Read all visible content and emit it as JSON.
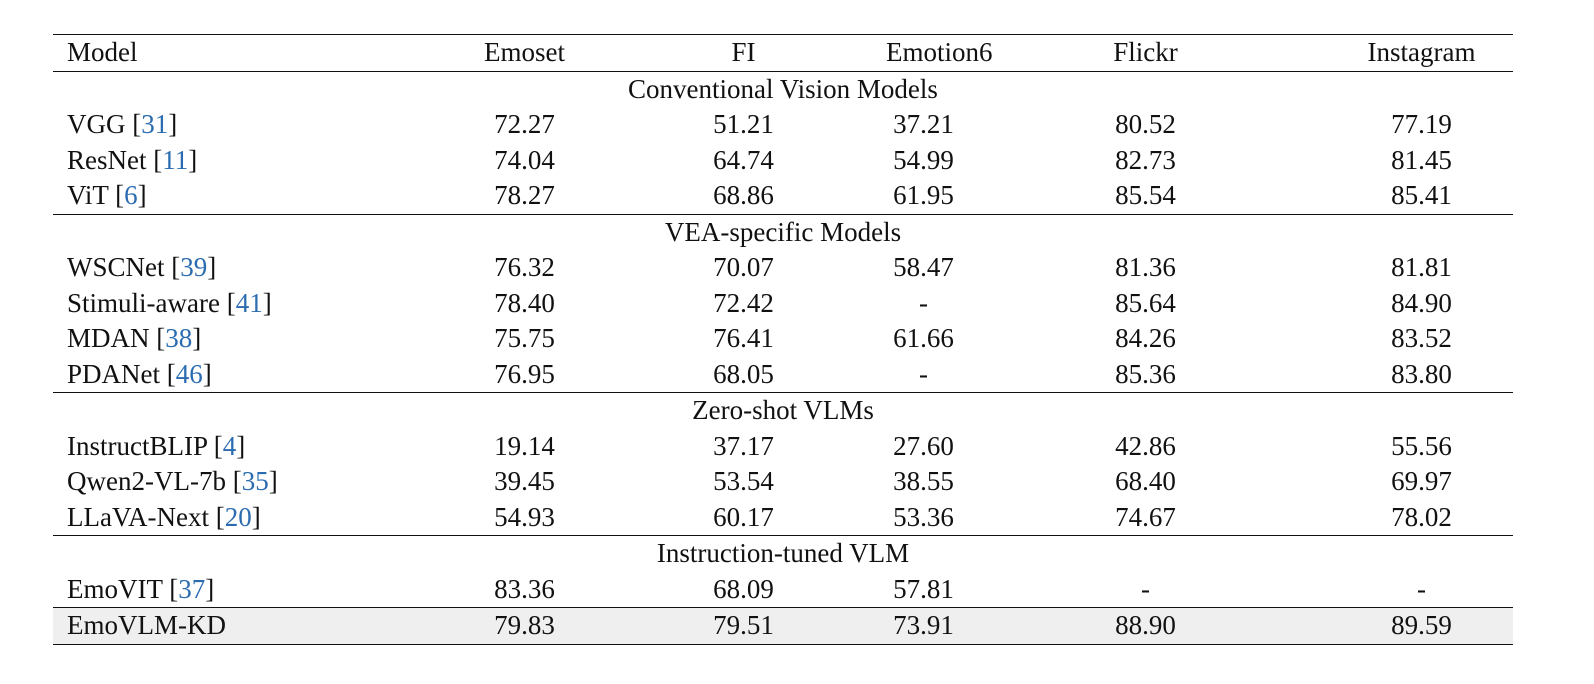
{
  "table": {
    "columns": [
      "Model",
      "Emoset",
      "FI",
      "Emotion6",
      "Flickr",
      "Instagram"
    ],
    "sections": [
      {
        "title": "Conventional Vision Models",
        "rows": [
          {
            "model": "VGG",
            "cite": "31",
            "values": [
              "72.27",
              "51.21",
              "37.21",
              "80.52",
              "77.19"
            ]
          },
          {
            "model": "ResNet",
            "cite": "11",
            "values": [
              "74.04",
              "64.74",
              "54.99",
              "82.73",
              "81.45"
            ]
          },
          {
            "model": "ViT",
            "cite": "6",
            "values": [
              "78.27",
              "68.86",
              "61.95",
              "85.54",
              "85.41"
            ]
          }
        ]
      },
      {
        "title": "VEA-specific Models",
        "rows": [
          {
            "model": "WSCNet",
            "cite": "39",
            "values": [
              "76.32",
              "70.07",
              "58.47",
              "81.36",
              "81.81"
            ]
          },
          {
            "model": "Stimuli-aware",
            "cite": "41",
            "values": [
              "78.40",
              "72.42",
              "-",
              "85.64",
              "84.90"
            ]
          },
          {
            "model": "MDAN",
            "cite": "38",
            "values": [
              "75.75",
              "76.41",
              "61.66",
              "84.26",
              "83.52"
            ]
          },
          {
            "model": "PDANet",
            "cite": "46",
            "values": [
              "76.95",
              "68.05",
              "-",
              "85.36",
              "83.80"
            ]
          }
        ]
      },
      {
        "title": "Zero-shot VLMs",
        "rows": [
          {
            "model": "InstructBLIP",
            "cite": "4",
            "values": [
              "19.14",
              "37.17",
              "27.60",
              "42.86",
              "55.56"
            ]
          },
          {
            "model": "Qwen2-VL-7b",
            "cite": "35",
            "values": [
              "39.45",
              "53.54",
              "38.55",
              "68.40",
              "69.97"
            ]
          },
          {
            "model": "LLaVA-Next",
            "cite": "20",
            "values": [
              "54.93",
              "60.17",
              "53.36",
              "74.67",
              "78.02"
            ]
          }
        ]
      },
      {
        "title": "Instruction-tuned VLM",
        "rows": [
          {
            "model": "EmoVIT",
            "cite": "37",
            "values": [
              "83.36",
              "68.09",
              "57.81",
              "-",
              "-"
            ]
          }
        ]
      }
    ],
    "final_row": {
      "model": "EmoVLM-KD",
      "values": [
        "79.83",
        "79.51",
        "73.91",
        "88.90",
        "89.59"
      ]
    }
  }
}
